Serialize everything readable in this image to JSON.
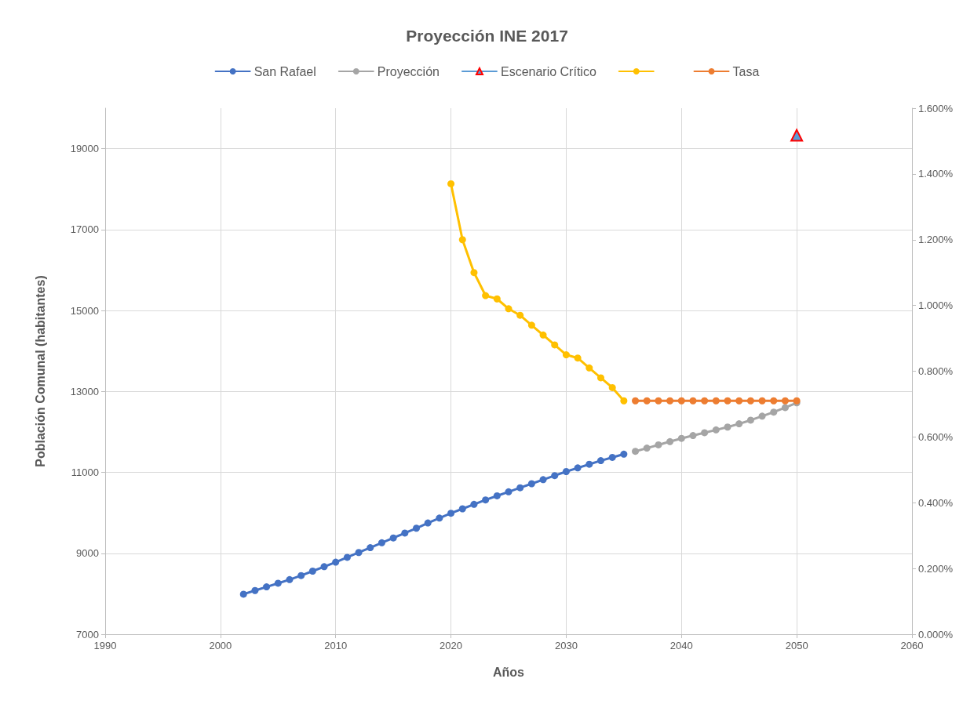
{
  "chart_data": {
    "type": "line",
    "title": "Proyección INE 2017",
    "xlabel": "Años",
    "ylabel": "Población Comunal (habitantes)",
    "xlim": [
      1990,
      2060
    ],
    "xticks": [
      1990,
      2000,
      2010,
      2020,
      2030,
      2040,
      2050,
      2060
    ],
    "ylim": [
      7000,
      20000
    ],
    "yticks": [
      7000,
      9000,
      11000,
      13000,
      15000,
      17000,
      19000
    ],
    "y2lim": [
      0,
      1.6
    ],
    "y2ticks": [
      {
        "value": 0,
        "label": "0.000%"
      },
      {
        "value": 0.2,
        "label": "0.200%"
      },
      {
        "value": 0.4,
        "label": "0.400%"
      },
      {
        "value": 0.6,
        "label": "0.600%"
      },
      {
        "value": 0.8,
        "label": "0.800%"
      },
      {
        "value": 1.0,
        "label": "1.000%"
      },
      {
        "value": 1.2,
        "label": "1.200%"
      },
      {
        "value": 1.4,
        "label": "1.400%"
      },
      {
        "value": 1.6,
        "label": "1.600%"
      }
    ],
    "grid": true,
    "legend": "top",
    "marker": "circle",
    "line_style": "solid",
    "series": [
      {
        "name": "San Rafael",
        "color": "#4472c4",
        "x": [
          2002,
          2003,
          2004,
          2005,
          2006,
          2007,
          2008,
          2009,
          2010,
          2011,
          2012,
          2013,
          2014,
          2015,
          2016,
          2017,
          2018,
          2019,
          2020,
          2021,
          2022,
          2023,
          2024,
          2025,
          2026,
          2027,
          2028,
          2029,
          2030,
          2031,
          2032,
          2033,
          2034,
          2035
        ],
        "values": [
          7990,
          8080,
          8170,
          8260,
          8350,
          8450,
          8560,
          8670,
          8780,
          8900,
          9020,
          9140,
          9260,
          9380,
          9500,
          9620,
          9750,
          9870,
          9990,
          10100,
          10210,
          10320,
          10420,
          10520,
          10620,
          10720,
          10820,
          10920,
          11020,
          11110,
          11200,
          11290,
          11370,
          11450
        ]
      },
      {
        "name": "Proyección",
        "color": "#a5a5a5",
        "x": [
          2036,
          2037,
          2038,
          2039,
          2040,
          2041,
          2042,
          2043,
          2044,
          2045,
          2046,
          2047,
          2048,
          2049,
          2050
        ],
        "values": [
          11520,
          11600,
          11680,
          11760,
          11840,
          11910,
          11980,
          12050,
          12120,
          12200,
          12290,
          12390,
          12490,
          12600,
          12720
        ]
      },
      {
        "name": "Escenario Crítico",
        "color": "#5b9bd5",
        "marker": "triangle",
        "x": [
          2050
        ],
        "values": [
          19330
        ]
      },
      {
        "color": "#ffc000",
        "axis": "y2",
        "x": [
          2020,
          2021,
          2022,
          2023,
          2024,
          2025,
          2026,
          2027,
          2028,
          2029,
          2030,
          2031,
          2032,
          2033,
          2034,
          2035
        ],
        "values": [
          1.37,
          1.2,
          1.1,
          1.03,
          1.02,
          0.99,
          0.97,
          0.94,
          0.91,
          0.88,
          0.85,
          0.84,
          0.81,
          0.78,
          0.75,
          0.71
        ]
      },
      {
        "name": "Tasa",
        "color": "#ed7d31",
        "axis": "y2",
        "x": [
          2036,
          2037,
          2038,
          2039,
          2040,
          2041,
          2042,
          2043,
          2044,
          2045,
          2046,
          2047,
          2048,
          2049,
          2050
        ],
        "values": [
          0.71,
          0.71,
          0.71,
          0.71,
          0.71,
          0.71,
          0.71,
          0.71,
          0.71,
          0.71,
          0.71,
          0.71,
          0.71,
          0.71,
          0.71
        ]
      }
    ]
  }
}
